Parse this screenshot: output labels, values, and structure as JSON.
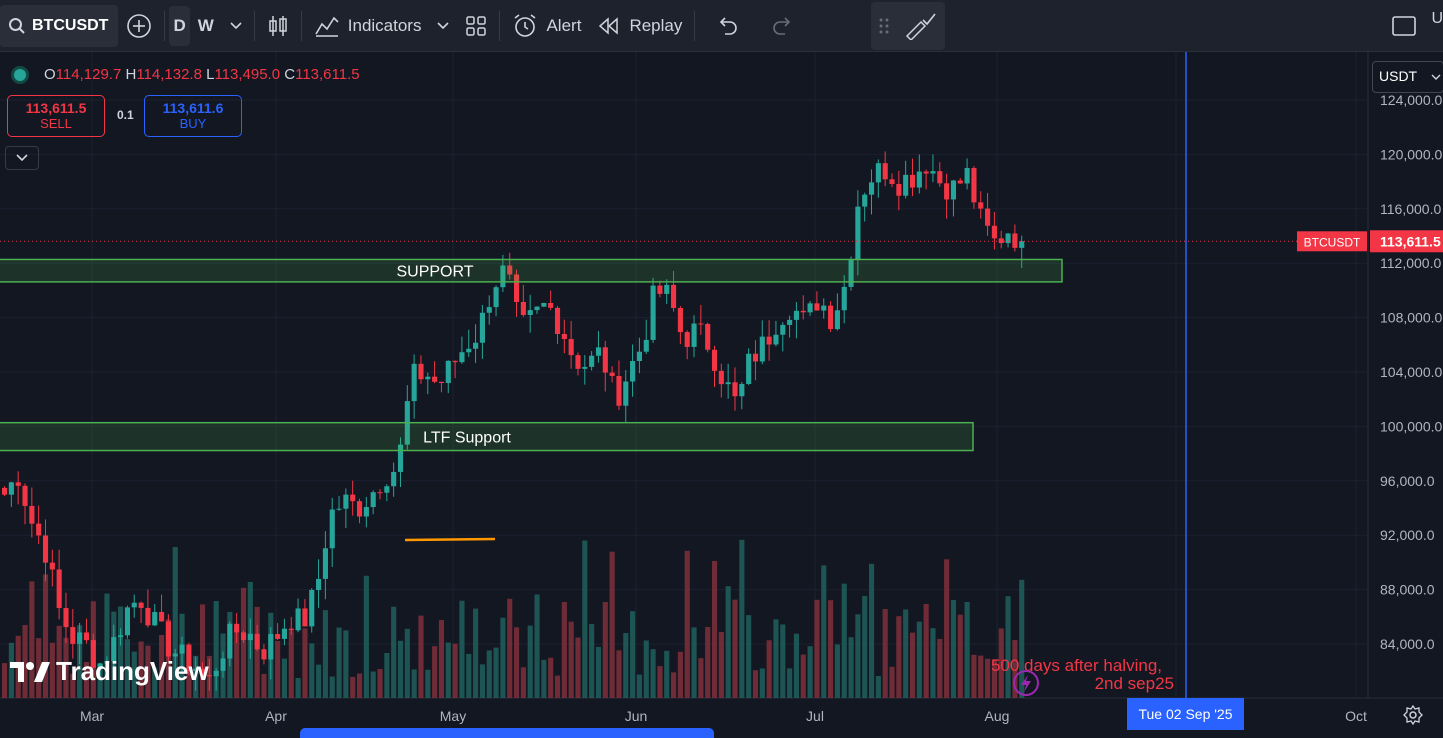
{
  "toolbar": {
    "symbol": "BTCUSDT",
    "interval_d": "D",
    "interval_w": "W",
    "indicators_label": "Indicators",
    "alert_label": "Alert",
    "replay_label": "Replay",
    "top_right_glyph": "U"
  },
  "legend": {
    "o_label": "O",
    "o_value": "114,129.7",
    "h_label": "H",
    "h_value": "114,132.8",
    "l_label": "L",
    "l_value": "113,495.0",
    "c_label": "C",
    "c_value": "113,611.5"
  },
  "trade": {
    "sell_price": "113,611.5",
    "sell_label": "SELL",
    "spread": "0.1",
    "buy_price": "113,611.6",
    "buy_label": "BUY"
  },
  "currency": "USDT",
  "brand": "TradingView",
  "date_marker": "Tue 02 Sep '25",
  "colors": {
    "background": "#131722",
    "up": "#26a69a",
    "down": "#f23645",
    "zone": "#4caf50",
    "accent": "#2962ff",
    "trendline": "#ff9800"
  },
  "chart_data": {
    "type": "candlestick",
    "symbol": "BTCUSDT",
    "timeframe": "D",
    "y_ticks": [
      "124,000.0",
      "120,000.0",
      "116,000.0",
      "112,000.0",
      "108,000.0",
      "104,000.0",
      "100,000.0",
      "96,000.0",
      "92,000.0",
      "88,000.0",
      "84,000.0"
    ],
    "ylim": [
      80000,
      125500
    ],
    "x_ticks": [
      "Mar",
      "Apr",
      "May",
      "Jun",
      "Jul",
      "Aug",
      "Oct"
    ],
    "last_price_label": "BTCUSDT",
    "last_price": "113,611.5",
    "zones": [
      {
        "label": "SUPPORT",
        "low": 110700,
        "high": 112200
      },
      {
        "label": "LTF Support",
        "low": 98300,
        "high": 100200
      }
    ],
    "annotation": "500 days after halving,\n2nd sep25",
    "annotation_line1": "500 days after halving,",
    "annotation_line2": "2nd sep25",
    "close_series_approx": [
      95000,
      96500,
      93000,
      91000,
      86500,
      84500,
      84000,
      82500,
      84000,
      86500,
      87500,
      85500,
      84000,
      83000,
      82500,
      81000,
      83500,
      85000,
      84800,
      83500,
      84500,
      86000,
      85500,
      88000,
      93500,
      94500,
      94000,
      95000,
      96500,
      97000,
      103500,
      104000,
      103000,
      104500,
      106000,
      107000,
      110500,
      111500,
      107000,
      108000,
      109000,
      107500,
      105000,
      104500,
      105500,
      102000,
      104000,
      106000,
      110000,
      109500,
      106500,
      107000,
      106000,
      103500,
      101500,
      105000,
      106000,
      108000,
      109000,
      107500,
      109500,
      108000,
      110500,
      117000,
      118500,
      119000,
      118000,
      118500,
      119500,
      118000,
      117500,
      118500,
      115000,
      113500,
      114500,
      113611.5
    ],
    "volume_scale_note": "Volume bars shown at bottom, colored by candle direction"
  }
}
